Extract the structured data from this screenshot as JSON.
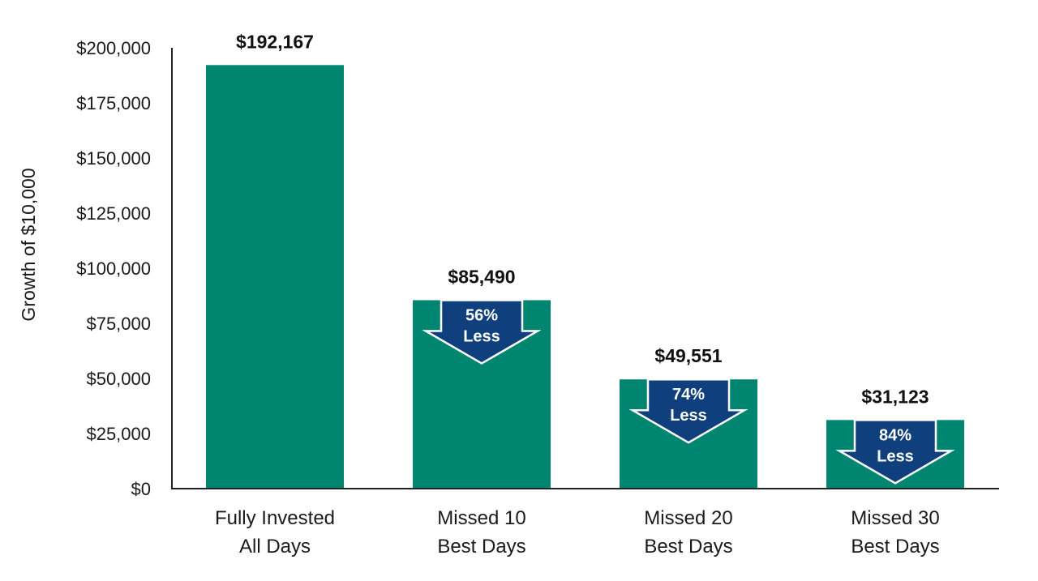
{
  "chart_data": {
    "type": "bar",
    "title": "",
    "xlabel": "",
    "ylabel": "Growth of $10,000",
    "ylim": [
      0,
      200000
    ],
    "yticks": [
      "$0",
      "$25,000",
      "$50,000",
      "$75,000",
      "$100,000",
      "$125,000",
      "$150,000",
      "$175,000",
      "$200,000"
    ],
    "ytick_values": [
      0,
      25000,
      50000,
      75000,
      100000,
      125000,
      150000,
      175000,
      200000
    ],
    "categories": [
      [
        "Fully Invested",
        "All Days"
      ],
      [
        "Missed 10",
        "Best Days"
      ],
      [
        "Missed 20",
        "Best Days"
      ],
      [
        "Missed 30",
        "Best Days"
      ]
    ],
    "values": [
      192167,
      85490,
      49551,
      31123
    ],
    "value_labels": [
      "$192,167",
      "$85,490",
      "$49,551",
      "$31,123"
    ],
    "annotations": [
      null,
      [
        "56%",
        "Less"
      ],
      [
        "74%",
        "Less"
      ],
      [
        "84%",
        "Less"
      ]
    ],
    "grid": false,
    "colors": {
      "bar": "#008670",
      "arrow": "#0f3f7c",
      "arrow_outline": "#ffffff",
      "axis": "#222222"
    }
  }
}
